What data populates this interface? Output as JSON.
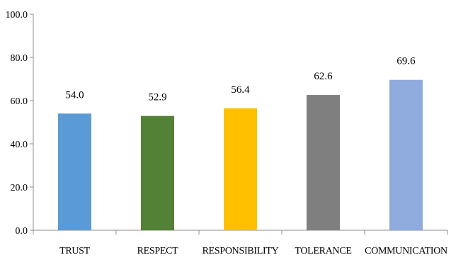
{
  "chart_data": {
    "type": "bar",
    "categories": [
      "TRUST",
      "RESPECT",
      "RESPONSIBILITY",
      "TOLERANCE",
      "COMMUNICATION"
    ],
    "values": [
      54.0,
      52.9,
      56.4,
      62.6,
      69.6
    ],
    "data_labels": [
      "54.0",
      "52.9",
      "56.4",
      "62.6",
      "69.6"
    ],
    "colors": [
      "#5b9bd5",
      "#538135",
      "#ffc000",
      "#7f7f7f",
      "#8faadc"
    ],
    "ylim": [
      0,
      100
    ],
    "yticks": [
      "0.0",
      "20.0",
      "40.0",
      "60.0",
      "80.0",
      "100.0"
    ],
    "ytick_values": [
      0,
      20,
      40,
      60,
      80,
      100
    ],
    "grid": false,
    "legend": "none",
    "title": "",
    "xlabel": "",
    "ylabel": ""
  }
}
